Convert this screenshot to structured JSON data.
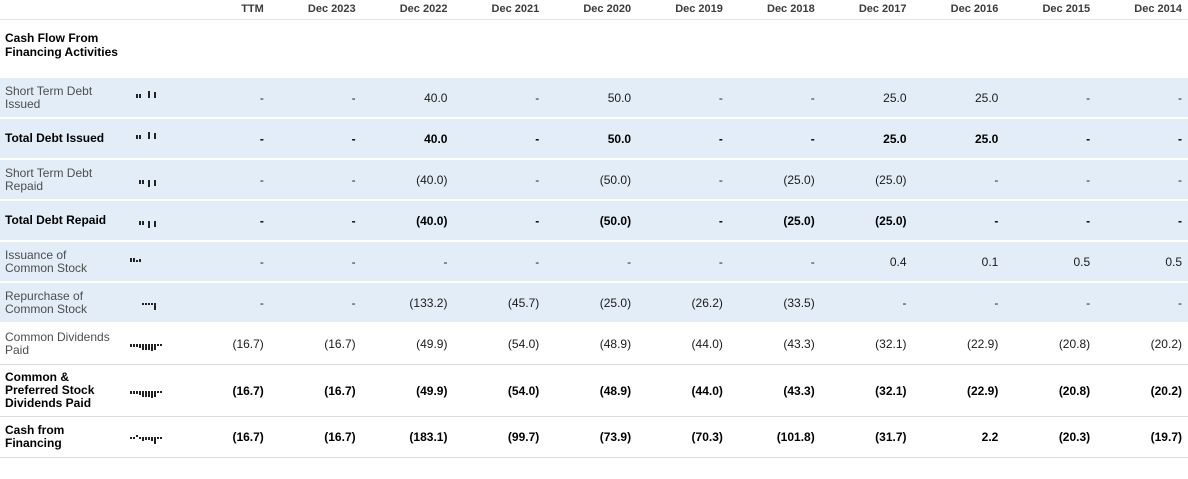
{
  "section_title": "Cash Flow From Financing Activities",
  "colors": {
    "row_highlight": "#e3edf8",
    "spark_bar": "#222222"
  },
  "chart_data": {
    "type": "table",
    "title": "Cash Flow From Financing Activities",
    "columns": [
      "TTM",
      "Dec 2023",
      "Dec 2022",
      "Dec 2021",
      "Dec 2020",
      "Dec 2019",
      "Dec 2018",
      "Dec 2017",
      "Dec 2016",
      "Dec 2015",
      "Dec 2014"
    ],
    "rows": [
      {
        "label": "Short Term Debt Issued",
        "bold": false,
        "shaded": true,
        "values": [
          "-",
          "-",
          "40.0",
          "-",
          "50.0",
          "-",
          "-",
          "25.0",
          "25.0",
          "-",
          "-"
        ]
      },
      {
        "label": "Total Debt Issued",
        "bold": true,
        "shaded": true,
        "values": [
          "-",
          "-",
          "40.0",
          "-",
          "50.0",
          "-",
          "-",
          "25.0",
          "25.0",
          "-",
          "-"
        ]
      },
      {
        "label": "Short Term Debt Repaid",
        "bold": false,
        "shaded": true,
        "values": [
          "-",
          "-",
          "(40.0)",
          "-",
          "(50.0)",
          "-",
          "(25.0)",
          "(25.0)",
          "-",
          "-",
          "-"
        ]
      },
      {
        "label": "Total Debt Repaid",
        "bold": true,
        "shaded": true,
        "values": [
          "-",
          "-",
          "(40.0)",
          "-",
          "(50.0)",
          "-",
          "(25.0)",
          "(25.0)",
          "-",
          "-",
          "-"
        ]
      },
      {
        "label": "Issuance of Common Stock",
        "bold": false,
        "shaded": true,
        "values": [
          "-",
          "-",
          "-",
          "-",
          "-",
          "-",
          "-",
          "0.4",
          "0.1",
          "0.5",
          "0.5"
        ]
      },
      {
        "label": "Repurchase of Common Stock",
        "bold": false,
        "shaded": true,
        "values": [
          "-",
          "-",
          "(133.2)",
          "(45.7)",
          "(25.0)",
          "(26.2)",
          "(33.5)",
          "-",
          "-",
          "-",
          "-"
        ]
      },
      {
        "label": "Common Dividends Paid",
        "bold": false,
        "shaded": false,
        "values": [
          "(16.7)",
          "(16.7)",
          "(49.9)",
          "(54.0)",
          "(48.9)",
          "(44.0)",
          "(43.3)",
          "(32.1)",
          "(22.9)",
          "(20.8)",
          "(20.2)"
        ]
      },
      {
        "label": "Common & Preferred Stock Dividends Paid",
        "bold": true,
        "shaded": false,
        "values": [
          "(16.7)",
          "(16.7)",
          "(49.9)",
          "(54.0)",
          "(48.9)",
          "(44.0)",
          "(43.3)",
          "(32.1)",
          "(22.9)",
          "(20.8)",
          "(20.2)"
        ]
      },
      {
        "label": "Cash from Financing",
        "bold": true,
        "shaded": false,
        "values": [
          "(16.7)",
          "(16.7)",
          "(183.1)",
          "(99.7)",
          "(73.9)",
          "(70.3)",
          "(101.8)",
          "(31.7)",
          "2.2",
          "(20.3)",
          "(19.7)"
        ]
      }
    ]
  }
}
